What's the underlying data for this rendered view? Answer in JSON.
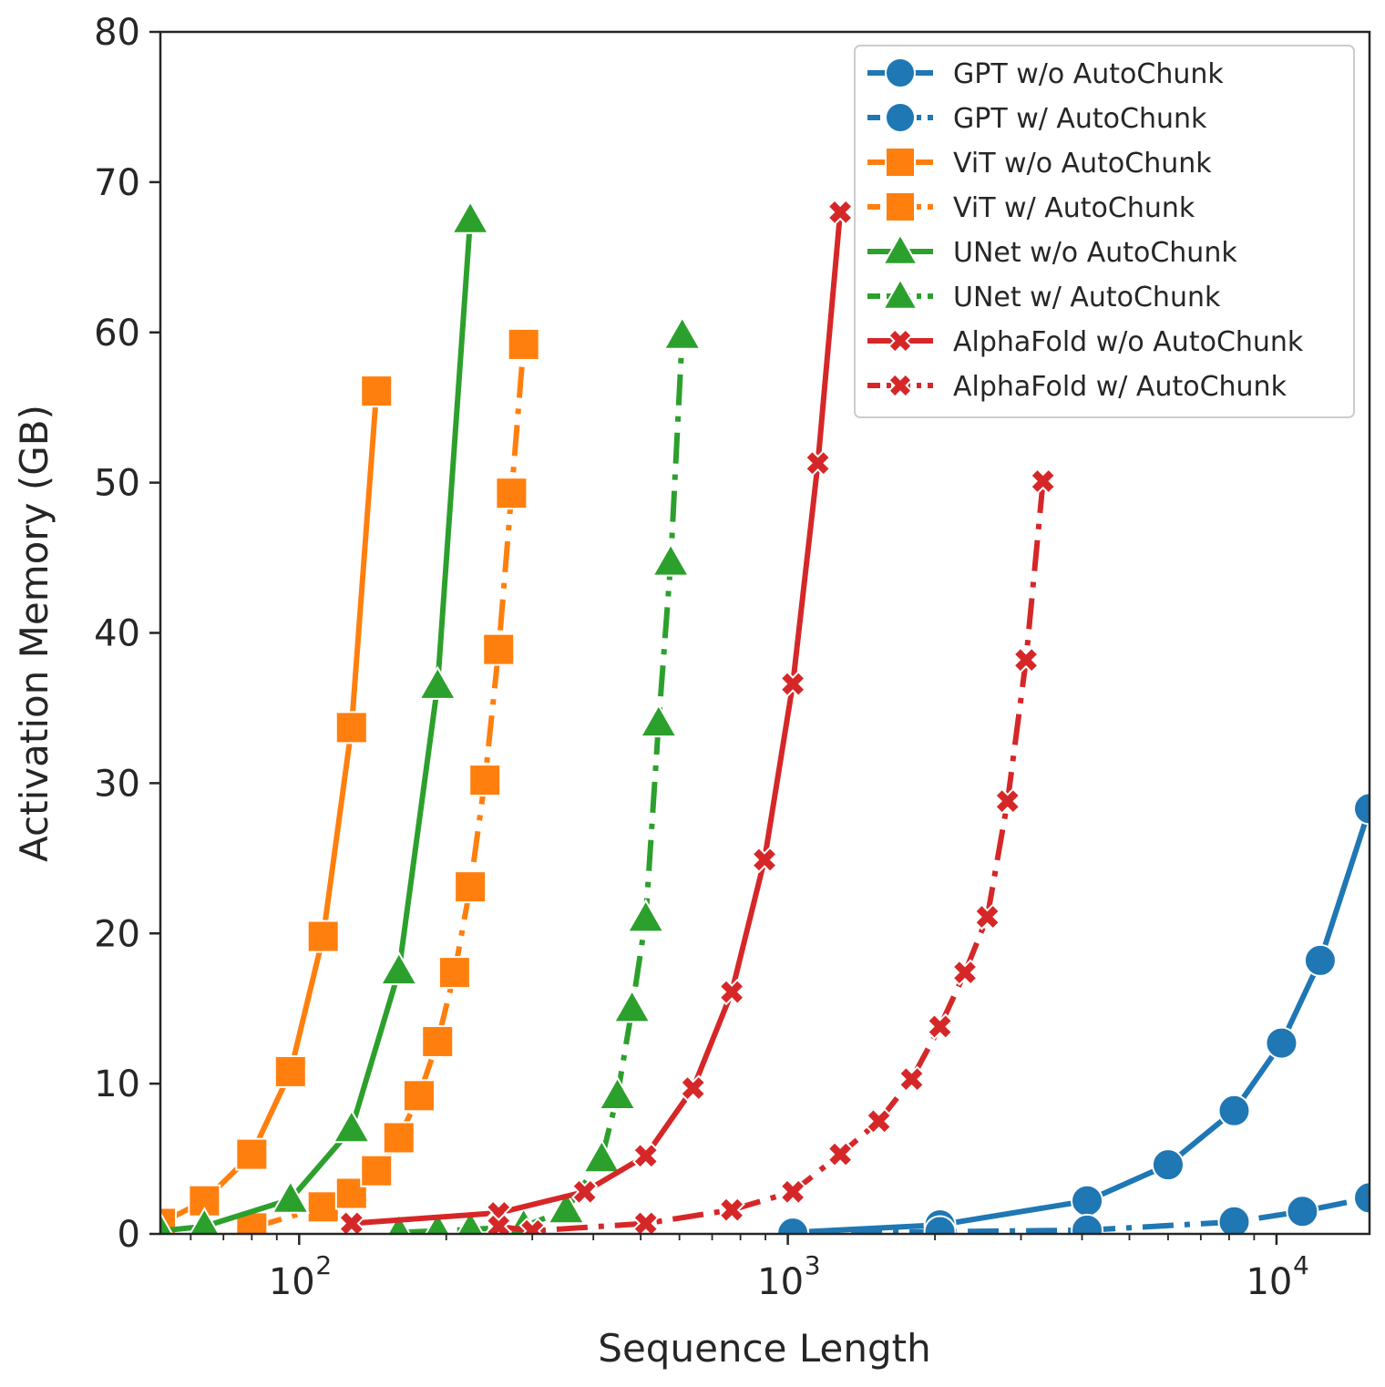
{
  "chart_data": {
    "type": "line",
    "title": "",
    "xlabel": "Sequence Length",
    "ylabel": "Activation Memory (GB)",
    "xscale": "log",
    "xlim": [
      52,
      15500
    ],
    "ylim": [
      0,
      80
    ],
    "yticks": [
      "0",
      "10",
      "20",
      "30",
      "40",
      "50",
      "60",
      "70",
      "80"
    ],
    "xticks": [
      {
        "value": 100,
        "base": "10",
        "exp": "2"
      },
      {
        "value": 1000,
        "base": "10",
        "exp": "3"
      },
      {
        "value": 10000,
        "base": "10",
        "exp": "4"
      }
    ],
    "grid": false,
    "legend_position": "top-right",
    "series": [
      {
        "name": "GPT w/o AutoChunk",
        "color": "#1f77b4",
        "marker": "circle",
        "linestyle": "solid",
        "x": [
          1024,
          2048,
          4096,
          6000,
          8192,
          10240,
          12288,
          15500
        ],
        "y": [
          0.1,
          0.6,
          2.2,
          4.6,
          8.2,
          12.7,
          18.2,
          28.3
        ]
      },
      {
        "name": "GPT w/ AutoChunk",
        "color": "#1f77b4",
        "marker": "circle",
        "linestyle": "dashdot",
        "x": [
          1024,
          2048,
          4096,
          8192,
          11300,
          15500
        ],
        "y": [
          0.05,
          0.15,
          0.25,
          0.8,
          1.5,
          2.4
        ]
      },
      {
        "name": "ViT w/o AutoChunk",
        "color": "#ff7f0e",
        "marker": "square",
        "linestyle": "solid",
        "x": [
          52,
          64,
          80,
          96,
          112,
          128,
          144
        ],
        "y": [
          0.7,
          2.2,
          5.3,
          10.8,
          19.8,
          33.7,
          56.1
        ]
      },
      {
        "name": "ViT w/ AutoChunk",
        "color": "#ff7f0e",
        "marker": "square",
        "linestyle": "dashdot",
        "x": [
          80,
          112,
          128,
          144,
          160,
          176,
          192,
          208,
          224,
          240,
          256,
          272,
          288
        ],
        "y": [
          0.4,
          1.8,
          2.7,
          4.2,
          6.4,
          9.2,
          12.8,
          17.4,
          23.1,
          30.2,
          38.9,
          49.3,
          59.2
        ]
      },
      {
        "name": "UNet w/o AutoChunk",
        "color": "#2ca02c",
        "marker": "triangle",
        "linestyle": "solid",
        "x": [
          52,
          64,
          96,
          128,
          160,
          192,
          224
        ],
        "y": [
          0.2,
          0.5,
          2.3,
          7.0,
          17.5,
          36.5,
          67.5
        ]
      },
      {
        "name": "UNet w/ AutoChunk",
        "color": "#2ca02c",
        "marker": "triangle",
        "linestyle": "dashdot",
        "x": [
          160,
          192,
          224,
          288,
          352,
          416,
          448,
          480,
          512,
          544,
          576,
          608
        ],
        "y": [
          0.1,
          0.2,
          0.3,
          0.5,
          1.6,
          5.0,
          9.2,
          15.0,
          21.0,
          34.0,
          44.7,
          59.8
        ]
      },
      {
        "name": "AlphaFold w/o AutoChunk",
        "color": "#d62728",
        "marker": "x",
        "linestyle": "solid",
        "x": [
          128,
          256,
          384,
          512,
          640,
          768,
          896,
          1024,
          1152,
          1280
        ],
        "y": [
          0.7,
          1.4,
          2.8,
          5.2,
          9.7,
          16.1,
          24.9,
          36.6,
          51.3,
          68.0
        ]
      },
      {
        "name": "AlphaFold w/ AutoChunk",
        "color": "#d62728",
        "marker": "x",
        "linestyle": "dashdot",
        "x": [
          256,
          300,
          512,
          768,
          1024,
          1280,
          1536,
          1792,
          2048,
          2304,
          2560,
          2816,
          3072,
          3328
        ],
        "y": [
          0.5,
          0.2,
          0.7,
          1.6,
          2.8,
          5.3,
          7.5,
          10.3,
          13.8,
          17.4,
          21.1,
          28.8,
          38.2,
          50.1
        ]
      }
    ]
  }
}
